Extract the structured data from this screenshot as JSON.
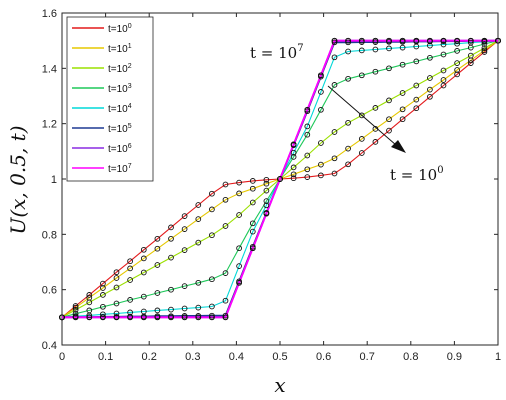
{
  "chart_data": {
    "type": "line",
    "ylabel": "U(x, 0.5, t)",
    "xlabel": "x",
    "xlim": [
      0,
      1
    ],
    "ylim": [
      0.4,
      1.6
    ],
    "xticks": [
      "0",
      "0.1",
      "0.2",
      "0.3",
      "0.4",
      "0.5",
      "0.6",
      "0.7",
      "0.8",
      "0.9",
      "1"
    ],
    "yticks": [
      "0.4",
      "0.6",
      "0.8",
      "1",
      "1.2",
      "1.4",
      "1.6"
    ],
    "grid": false,
    "legend_position": "top-left",
    "x": [
      0,
      0.0312,
      0.0625,
      0.0937,
      0.125,
      0.1562,
      0.1875,
      0.2187,
      0.25,
      0.2812,
      0.3125,
      0.3437,
      0.375,
      0.4062,
      0.4375,
      0.4687,
      0.5,
      0.5312,
      0.5625,
      0.5937,
      0.625,
      0.6562,
      0.6875,
      0.7187,
      0.75,
      0.7812,
      0.8125,
      0.8437,
      0.875,
      0.9062,
      0.9375,
      0.9687,
      1
    ],
    "series": [
      {
        "name": "10^0",
        "color": "#e31a1c",
        "values": [
          0.5,
          0.541,
          0.581,
          0.622,
          0.663,
          0.703,
          0.744,
          0.784,
          0.825,
          0.866,
          0.906,
          0.947,
          0.98,
          0.987,
          0.993,
          0.997,
          1.0,
          1.003,
          1.007,
          1.013,
          1.02,
          1.053,
          1.094,
          1.134,
          1.175,
          1.216,
          1.256,
          1.297,
          1.338,
          1.378,
          1.419,
          1.459,
          1.5
        ]
      },
      {
        "name": "10^1",
        "color": "#e6c800",
        "values": [
          0.5,
          0.535,
          0.571,
          0.606,
          0.642,
          0.677,
          0.713,
          0.748,
          0.784,
          0.819,
          0.855,
          0.89,
          0.925,
          0.948,
          0.965,
          0.983,
          1.0,
          1.017,
          1.035,
          1.052,
          1.075,
          1.11,
          1.145,
          1.181,
          1.216,
          1.252,
          1.287,
          1.323,
          1.358,
          1.394,
          1.429,
          1.465,
          1.5
        ]
      },
      {
        "name": "10^2",
        "color": "#9be000",
        "values": [
          0.5,
          0.527,
          0.554,
          0.581,
          0.608,
          0.635,
          0.662,
          0.689,
          0.716,
          0.743,
          0.77,
          0.797,
          0.83,
          0.87,
          0.915,
          0.958,
          1.0,
          1.042,
          1.085,
          1.13,
          1.17,
          1.203,
          1.23,
          1.257,
          1.284,
          1.311,
          1.338,
          1.365,
          1.392,
          1.419,
          1.446,
          1.473,
          1.5
        ]
      },
      {
        "name": "10^3",
        "color": "#1fc85a",
        "values": [
          0.5,
          0.513,
          0.525,
          0.538,
          0.55,
          0.563,
          0.575,
          0.588,
          0.6,
          0.613,
          0.625,
          0.638,
          0.66,
          0.75,
          0.84,
          0.92,
          1.0,
          1.08,
          1.16,
          1.25,
          1.34,
          1.362,
          1.375,
          1.388,
          1.4,
          1.413,
          1.425,
          1.438,
          1.45,
          1.463,
          1.475,
          1.488,
          1.5
        ]
      },
      {
        "name": "10^4",
        "color": "#00d8d8",
        "values": [
          0.5,
          0.504,
          0.507,
          0.511,
          0.514,
          0.518,
          0.521,
          0.525,
          0.528,
          0.532,
          0.535,
          0.539,
          0.56,
          0.685,
          0.81,
          0.905,
          1.0,
          1.095,
          1.19,
          1.315,
          1.44,
          1.461,
          1.465,
          1.468,
          1.472,
          1.475,
          1.479,
          1.482,
          1.486,
          1.489,
          1.493,
          1.496,
          1.5
        ]
      },
      {
        "name": "10^5",
        "color": "#1f3a93",
        "values": [
          0.5,
          0.501,
          0.501,
          0.502,
          0.502,
          0.503,
          0.503,
          0.504,
          0.504,
          0.505,
          0.505,
          0.506,
          0.506,
          0.63,
          0.755,
          0.878,
          1.0,
          1.122,
          1.245,
          1.37,
          1.494,
          1.494,
          1.495,
          1.495,
          1.496,
          1.496,
          1.497,
          1.497,
          1.498,
          1.498,
          1.499,
          1.499,
          1.5
        ]
      },
      {
        "name": "10^6",
        "color": "#8a2be2",
        "values": [
          0.5,
          0.5,
          0.5,
          0.5,
          0.5,
          0.5,
          0.5,
          0.5,
          0.5,
          0.5,
          0.5,
          0.5,
          0.5,
          0.625,
          0.75,
          0.875,
          1.0,
          1.125,
          1.25,
          1.375,
          1.5,
          1.5,
          1.5,
          1.5,
          1.5,
          1.5,
          1.5,
          1.5,
          1.5,
          1.5,
          1.5,
          1.5,
          1.5
        ]
      },
      {
        "name": "10^7",
        "color": "#ff00ff",
        "values": [
          0.5,
          0.5,
          0.5,
          0.5,
          0.5,
          0.5,
          0.5,
          0.5,
          0.5,
          0.5,
          0.5,
          0.5,
          0.5,
          0.625,
          0.75,
          0.875,
          1.0,
          1.125,
          1.25,
          1.375,
          1.5,
          1.5,
          1.5,
          1.5,
          1.5,
          1.5,
          1.5,
          1.5,
          1.5,
          1.5,
          1.5,
          1.5,
          1.5
        ]
      }
    ],
    "annotations": [
      {
        "text_prefix": "t = 10",
        "exponent": "7",
        "position": "upper-center"
      },
      {
        "text_prefix": "t = 10",
        "exponent": "0",
        "position": "right"
      }
    ],
    "marker": "circle-open"
  }
}
